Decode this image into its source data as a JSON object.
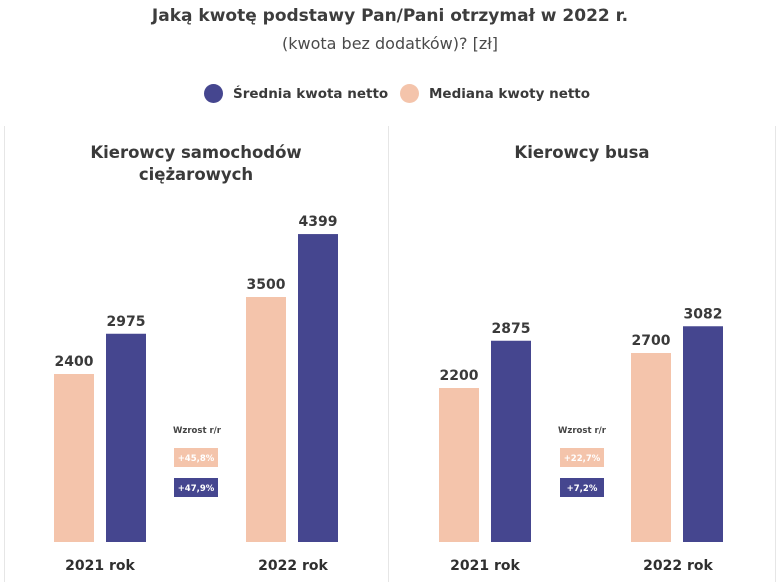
{
  "header": {
    "title": "Jaką kwotę podstawy Pan/Pani otrzymał w 2022 r.",
    "subtitle": "(kwota bez dodatków)? [zł]"
  },
  "legend": [
    {
      "label": "Średnia kwota netto",
      "color": "#45468f"
    },
    {
      "label": "Mediana kwoty netto",
      "color": "#f4c4ab"
    }
  ],
  "colors": {
    "mean": "#45468f",
    "median": "#f4c4ab",
    "badge_median_text": "#ffffff"
  },
  "chart_data": [
    {
      "type": "bar",
      "title_lines": [
        "Kierowcy samochodów",
        "ciężarowych"
      ],
      "categories": [
        "2021 rok",
        "2022 rok"
      ],
      "ylim": [
        0,
        6300
      ],
      "series": [
        {
          "name": "Mediana kwoty netto",
          "values": [
            2400,
            3500
          ]
        },
        {
          "name": "Średnia kwota netto",
          "values": [
            2975,
            4399
          ]
        }
      ],
      "growth": {
        "label": "Wzrost r/r",
        "median": "+45,8%",
        "mean": "+47,9%"
      }
    },
    {
      "type": "bar",
      "title_lines": [
        "Kierowcy busa"
      ],
      "categories": [
        "2021 rok",
        "2022 rok"
      ],
      "ylim": [
        0,
        6300
      ],
      "series": [
        {
          "name": "Mediana kwoty netto",
          "values": [
            2200,
            2700
          ]
        },
        {
          "name": "Średnia kwota netto",
          "values": [
            2875,
            3082
          ]
        }
      ],
      "growth": {
        "label": "Wzrost r/r",
        "median": "+22,7%",
        "mean": "+7,2%"
      }
    }
  ]
}
